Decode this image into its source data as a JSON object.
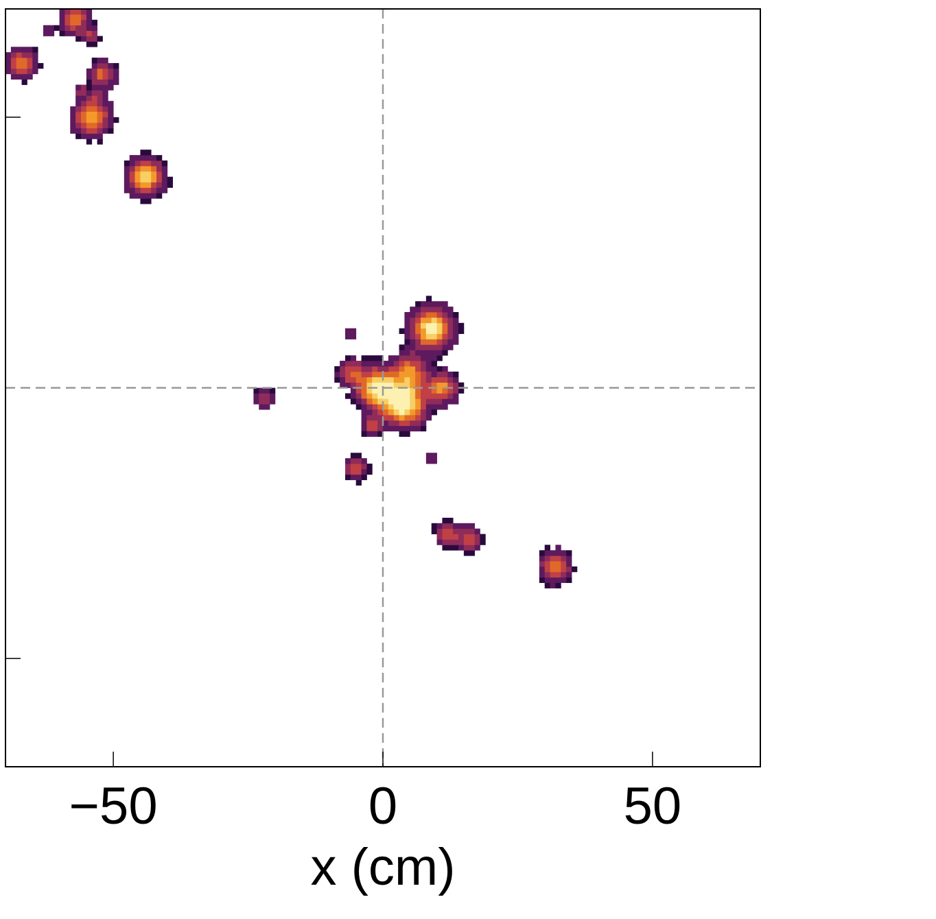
{
  "chart_data": {
    "type": "heatmap",
    "title": "",
    "xlabel": "x (cm)",
    "ylabel": "",
    "xlim": [
      -70,
      70
    ],
    "ylim": [
      -70,
      70
    ],
    "cell_size_cm": 1,
    "x_ticks": [
      {
        "value": -50,
        "label": "−50"
      },
      {
        "value": 0,
        "label": "0"
      },
      {
        "value": 50,
        "label": "50"
      }
    ],
    "y_ticks": [
      50,
      -50
    ],
    "reference_lines": [
      {
        "axis": "x",
        "value": 0,
        "style": "dashed",
        "color": "#999999"
      },
      {
        "axis": "y",
        "value": 0,
        "style": "dashed",
        "color": "#999999"
      }
    ],
    "colormap": "inferno",
    "colormap_stops": [
      "#2a0a3d",
      "#5d1a5e",
      "#8f2c5a",
      "#c04046",
      "#e0692a",
      "#f3992b",
      "#f8cf63",
      "#fcf1b0"
    ],
    "color_range": [
      0,
      1
    ],
    "blobs": [
      {
        "x": -57,
        "y": 68,
        "r": 3.0,
        "peak": 0.55
      },
      {
        "x": -62,
        "y": 66,
        "r": 1.2,
        "peak": 0.3
      },
      {
        "x": -54,
        "y": 65,
        "r": 1.6,
        "peak": 0.35
      },
      {
        "x": -67,
        "y": 60,
        "r": 2.8,
        "peak": 0.6
      },
      {
        "x": -52,
        "y": 58,
        "r": 2.6,
        "peak": 0.55
      },
      {
        "x": -56,
        "y": 55,
        "r": 1.3,
        "peak": 0.3
      },
      {
        "x": -53,
        "y": 54,
        "r": 1.3,
        "peak": 0.3
      },
      {
        "x": -54,
        "y": 50,
        "r": 3.5,
        "peak": 0.75
      },
      {
        "x": -44,
        "y": 39,
        "r": 3.5,
        "peak": 0.85
      },
      {
        "x": -6,
        "y": 10,
        "r": 1.2,
        "peak": 0.3
      },
      {
        "x": 9,
        "y": 11,
        "r": 4.0,
        "peak": 0.95
      },
      {
        "x": -6,
        "y": 3,
        "r": 2.5,
        "peak": 0.5
      },
      {
        "x": 5,
        "y": 3,
        "r": 3.5,
        "peak": 0.6
      },
      {
        "x": -1,
        "y": 0,
        "r": 4.0,
        "peak": 0.95
      },
      {
        "x": 11,
        "y": 0,
        "r": 3.0,
        "peak": 0.65
      },
      {
        "x": 4,
        "y": -3,
        "r": 4.2,
        "peak": 1.0
      },
      {
        "x": -22,
        "y": -2,
        "r": 2.2,
        "peak": 0.3
      },
      {
        "x": -2,
        "y": -7,
        "r": 2.0,
        "peak": 0.45
      },
      {
        "x": -5,
        "y": -15,
        "r": 2.2,
        "peak": 0.5
      },
      {
        "x": 9,
        "y": -13,
        "r": 1.0,
        "peak": 0.3
      },
      {
        "x": 12,
        "y": -27,
        "r": 2.4,
        "peak": 0.45
      },
      {
        "x": 16,
        "y": -28,
        "r": 2.4,
        "peak": 0.5
      },
      {
        "x": 32,
        "y": -33,
        "r": 3.0,
        "peak": 0.6
      }
    ]
  }
}
